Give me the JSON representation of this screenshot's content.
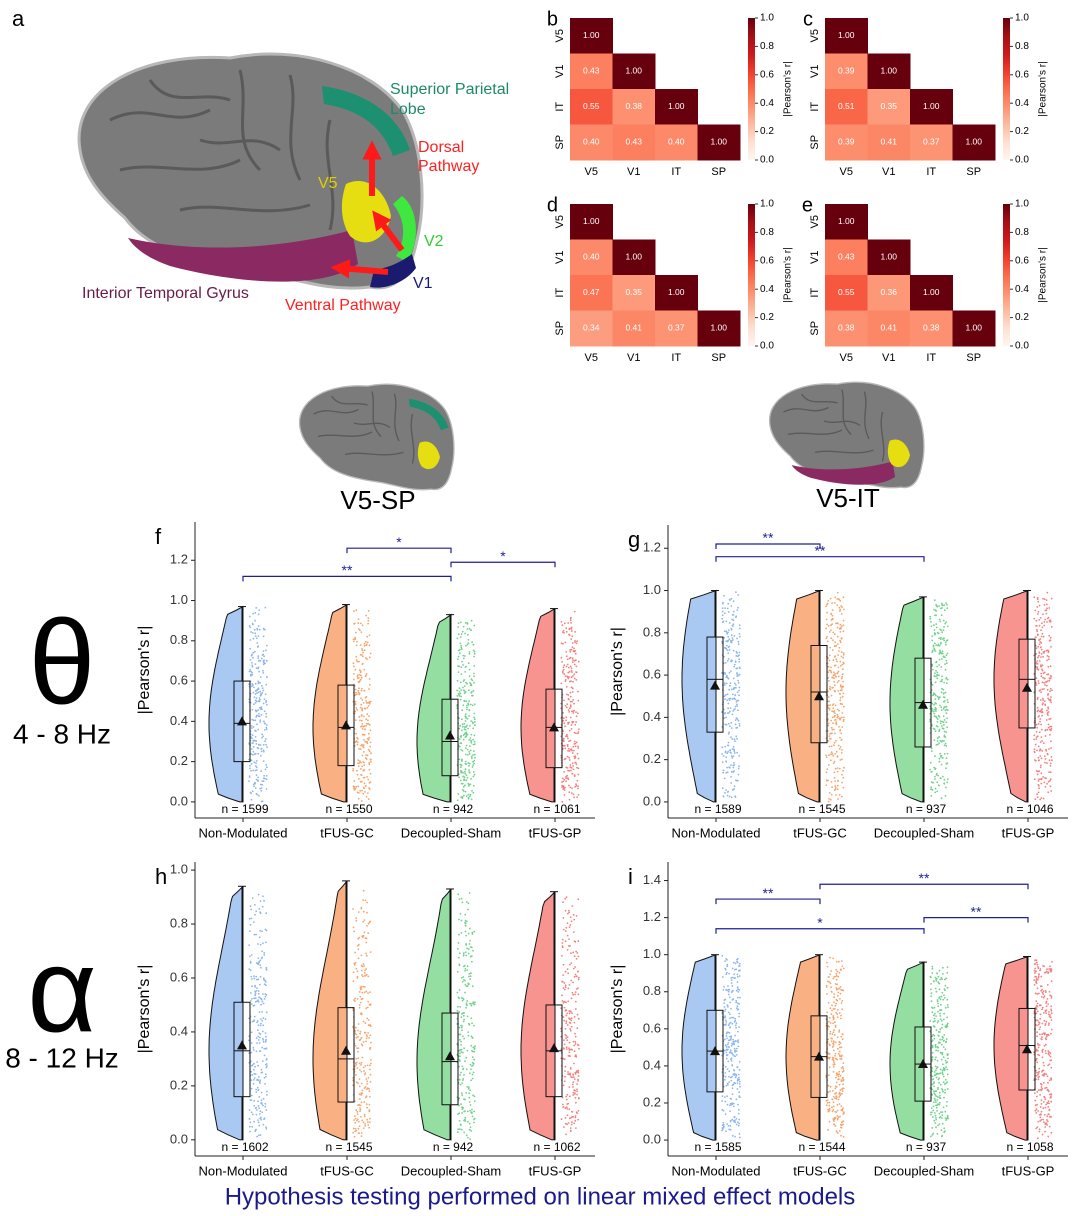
{
  "brain": {
    "panel": "a",
    "superior_parietal": [
      "Superior Parietal",
      "Lobe"
    ],
    "dorsal": [
      "Dorsal",
      "Pathway"
    ],
    "v5": "V5",
    "v2": "V2",
    "v1": "V1",
    "itg": "Interior Temporal Gyrus",
    "ventral": "Ventral Pathway"
  },
  "pairs": [
    "V5-SP",
    "V5-IT"
  ],
  "bands": [
    {
      "symbol": "θ",
      "range": "4 - 8 Hz"
    },
    {
      "symbol": "α",
      "range": "8 - 12 Hz"
    }
  ],
  "footer": "Hypothesis testing performed on linear mixed effect models",
  "chart_data": [
    {
      "type": "heatmap",
      "panel": "b",
      "categories": [
        "V5",
        "V1",
        "IT",
        "SP"
      ],
      "colormap": "Reds",
      "values": [
        [
          1,
          null,
          null,
          null
        ],
        [
          0.43,
          1,
          null,
          null
        ],
        [
          0.55,
          0.38,
          1,
          null
        ],
        [
          0.4,
          0.43,
          0.4,
          1
        ]
      ],
      "value_labels": [
        [
          "1.00",
          null,
          null,
          null
        ],
        [
          "0.43",
          "1.00",
          null,
          null
        ],
        [
          "0.55",
          "0.38",
          "1.00",
          null
        ],
        [
          "0.40",
          "0.43",
          "0.40",
          "1.00"
        ]
      ],
      "zlabel": "|Pearson's r|",
      "zlim": [
        0,
        1
      ],
      "zticks": [
        {
          "value": 0,
          "label": "0.0"
        },
        0.2,
        0.4,
        0.6,
        0.8,
        {
          "value": 1,
          "label": "1.0"
        }
      ]
    },
    {
      "type": "heatmap",
      "panel": "c",
      "categories": [
        "V5",
        "V1",
        "IT",
        "SP"
      ],
      "colormap": "Reds",
      "values": [
        [
          1,
          null,
          null,
          null
        ],
        [
          0.39,
          1,
          null,
          null
        ],
        [
          0.51,
          0.35,
          1,
          null
        ],
        [
          0.39,
          0.41,
          0.37,
          1
        ]
      ],
      "value_labels": [
        [
          "1.00",
          null,
          null,
          null
        ],
        [
          "0.39",
          "1.00",
          null,
          null
        ],
        [
          "0.51",
          "0.35",
          "1.00",
          null
        ],
        [
          "0.39",
          "0.41",
          "0.37",
          "1.00"
        ]
      ],
      "zlabel": "|Pearson's r|",
      "zlim": [
        0,
        1
      ],
      "zticks": [
        {
          "value": 0,
          "label": "0.0"
        },
        0.2,
        0.4,
        0.6,
        0.8,
        {
          "value": 1,
          "label": "1.0"
        }
      ]
    },
    {
      "type": "heatmap",
      "panel": "d",
      "categories": [
        "V5",
        "V1",
        "IT",
        "SP"
      ],
      "colormap": "Reds",
      "values": [
        [
          1,
          null,
          null,
          null
        ],
        [
          0.4,
          1,
          null,
          null
        ],
        [
          0.47,
          0.35,
          1,
          null
        ],
        [
          0.34,
          0.41,
          0.37,
          1
        ]
      ],
      "value_labels": [
        [
          "1.00",
          null,
          null,
          null
        ],
        [
          "0.40",
          "1.00",
          null,
          null
        ],
        [
          "0.47",
          "0.35",
          "1.00",
          null
        ],
        [
          "0.34",
          "0.41",
          "0.37",
          "1.00"
        ]
      ],
      "zlabel": "|Pearson's r|",
      "zlim": [
        0,
        1
      ],
      "zticks": [
        {
          "value": 0,
          "label": "0.0"
        },
        0.2,
        0.4,
        0.6,
        0.8,
        {
          "value": 1,
          "label": "1.0"
        }
      ]
    },
    {
      "type": "heatmap",
      "panel": "e",
      "categories": [
        "V5",
        "V1",
        "IT",
        "SP"
      ],
      "colormap": "Reds",
      "values": [
        [
          1,
          null,
          null,
          null
        ],
        [
          0.43,
          1,
          null,
          null
        ],
        [
          0.55,
          0.36,
          1,
          null
        ],
        [
          0.38,
          0.41,
          0.38,
          1
        ]
      ],
      "value_labels": [
        [
          "1.00",
          null,
          null,
          null
        ],
        [
          "0.43",
          "1.00",
          null,
          null
        ],
        [
          "0.55",
          "0.36",
          "1.00",
          null
        ],
        [
          "0.38",
          "0.41",
          "0.38",
          "1.00"
        ]
      ],
      "zlabel": "|Pearson's r|",
      "zlim": [
        0,
        1
      ],
      "zticks": [
        {
          "value": 0,
          "label": "0.0"
        },
        0.2,
        0.4,
        0.6,
        0.8,
        {
          "value": 1,
          "label": "1.0"
        }
      ]
    },
    {
      "type": "violin",
      "panel": "f",
      "ylabel": "|Pearson's r|",
      "categories": [
        "Non-Modulated",
        "tFUS-GC",
        "Decoupled-Sham",
        "tFUS-GP"
      ],
      "colors": [
        "#a9c8f2",
        "#f9b184",
        "#93dea0",
        "#f79490"
      ],
      "point_colors": [
        "#8cb6ee",
        "#f4a46c",
        "#70d18b",
        "#f2807e"
      ],
      "ylim": [
        -0.08,
        1.39
      ],
      "yticks": [
        {
          "value": 0,
          "label": "0.0"
        },
        0.2,
        0.4,
        0.6,
        0.8,
        {
          "value": 1,
          "label": "1.0"
        },
        1.2
      ],
      "min": [
        0,
        0,
        0,
        0
      ],
      "q1": [
        0.2,
        0.18,
        0.13,
        0.17
      ],
      "median": [
        0.39,
        0.37,
        0.3,
        0.37
      ],
      "q3": [
        0.6,
        0.58,
        0.51,
        0.56
      ],
      "max": [
        0.97,
        0.98,
        0.93,
        0.96
      ],
      "mean": [
        0.4,
        0.38,
        0.33,
        0.37
      ],
      "n_labels": [
        "n = 1599",
        "n = 1550",
        "n = 942",
        "n = 1061"
      ],
      "significance": [
        {
          "between": [
            "tFUS-GC",
            "Decoupled-Sham"
          ],
          "y": 1.26,
          "label": "*"
        },
        {
          "between": [
            "Decoupled-Sham",
            "tFUS-GP"
          ],
          "y": 1.19,
          "label": "*"
        },
        {
          "between": [
            "Non-Modulated",
            "Decoupled-Sham"
          ],
          "y": 1.12,
          "label": "**"
        }
      ]
    },
    {
      "type": "violin",
      "panel": "g",
      "ylabel": "|Pearson's r|",
      "categories": [
        "Non-Modulated",
        "tFUS-GC",
        "Decoupled-Sham",
        "tFUS-GP"
      ],
      "colors": [
        "#a9c8f2",
        "#f9b184",
        "#93dea0",
        "#f79490"
      ],
      "point_colors": [
        "#8cb6ee",
        "#f4a46c",
        "#70d18b",
        "#f2807e"
      ],
      "ylim": [
        -0.076,
        1.31
      ],
      "yticks": [
        {
          "value": 0,
          "label": "0.0"
        },
        0.2,
        0.4,
        0.6,
        0.8,
        {
          "value": 1,
          "label": "1.0"
        },
        1.2
      ],
      "min": [
        0,
        0,
        0,
        0
      ],
      "q1": [
        0.33,
        0.28,
        0.26,
        0.35
      ],
      "median": [
        0.58,
        0.52,
        0.47,
        0.58
      ],
      "q3": [
        0.78,
        0.74,
        0.68,
        0.77
      ],
      "max": [
        1,
        1,
        0.97,
        1
      ],
      "mean": [
        0.55,
        0.5,
        0.46,
        0.54
      ],
      "n_labels": [
        "n = 1589",
        "n = 1545",
        "n = 937",
        "n = 1046"
      ],
      "significance": [
        {
          "between": [
            "Non-Modulated",
            "tFUS-GC"
          ],
          "y": 1.22,
          "label": "**"
        },
        {
          "between": [
            "Non-Modulated",
            "Decoupled-Sham"
          ],
          "y": 1.16,
          "label": "**"
        }
      ]
    },
    {
      "type": "violin",
      "panel": "h",
      "ylabel": "|Pearson's r|",
      "categories": [
        "Non-Modulated",
        "tFUS-GC",
        "Decoupled-Sham",
        "tFUS-GP"
      ],
      "colors": [
        "#a9c8f2",
        "#f9b184",
        "#93dea0",
        "#f79490"
      ],
      "point_colors": [
        "#8cb6ee",
        "#f4a46c",
        "#70d18b",
        "#f2807e"
      ],
      "ylim": [
        -0.06,
        1.03
      ],
      "yticks": [
        {
          "value": 0,
          "label": "0.0"
        },
        0.2,
        0.4,
        0.6,
        0.8,
        {
          "value": 1,
          "label": "1.0"
        }
      ],
      "min": [
        0,
        0,
        0,
        0
      ],
      "q1": [
        0.16,
        0.14,
        0.13,
        0.16
      ],
      "median": [
        0.33,
        0.3,
        0.29,
        0.33
      ],
      "q3": [
        0.51,
        0.49,
        0.47,
        0.5
      ],
      "max": [
        0.94,
        0.96,
        0.93,
        0.92
      ],
      "mean": [
        0.35,
        0.33,
        0.31,
        0.34
      ],
      "n_labels": [
        "n = 1602",
        "n = 1545",
        "n = 942",
        "n = 1062"
      ],
      "significance": []
    },
    {
      "type": "violin",
      "panel": "i",
      "ylabel": "|Pearson's r|",
      "categories": [
        "Non-Modulated",
        "tFUS-GC",
        "Decoupled-Sham",
        "tFUS-GP"
      ],
      "colors": [
        "#a9c8f2",
        "#f9b184",
        "#93dea0",
        "#f79490"
      ],
      "point_colors": [
        "#8cb6ee",
        "#f4a46c",
        "#70d18b",
        "#f2807e"
      ],
      "ylim": [
        -0.086,
        1.5
      ],
      "yticks": [
        {
          "value": 0,
          "label": "0.0"
        },
        0.2,
        0.4,
        0.6,
        0.8,
        {
          "value": 1,
          "label": "1.0"
        },
        1.2,
        1.4
      ],
      "min": [
        0,
        0,
        0,
        0
      ],
      "q1": [
        0.26,
        0.23,
        0.21,
        0.27
      ],
      "median": [
        0.48,
        0.45,
        0.41,
        0.51
      ],
      "q3": [
        0.7,
        0.67,
        0.61,
        0.71
      ],
      "max": [
        1,
        1,
        0.96,
        0.99
      ],
      "mean": [
        0.48,
        0.45,
        0.41,
        0.49
      ],
      "n_labels": [
        "n = 1585",
        "n = 1544",
        "n = 937",
        "n = 1058"
      ],
      "significance": [
        {
          "between": [
            "Non-Modulated",
            "tFUS-GC"
          ],
          "y": 1.3,
          "label": "**"
        },
        {
          "between": [
            "tFUS-GC",
            "tFUS-GP"
          ],
          "y": 1.38,
          "label": "**"
        },
        {
          "between": [
            "Decoupled-Sham",
            "tFUS-GP"
          ],
          "y": 1.2,
          "label": "**"
        },
        {
          "between": [
            "Non-Modulated",
            "Decoupled-Sham"
          ],
          "y": 1.14,
          "label": "*"
        }
      ]
    }
  ]
}
